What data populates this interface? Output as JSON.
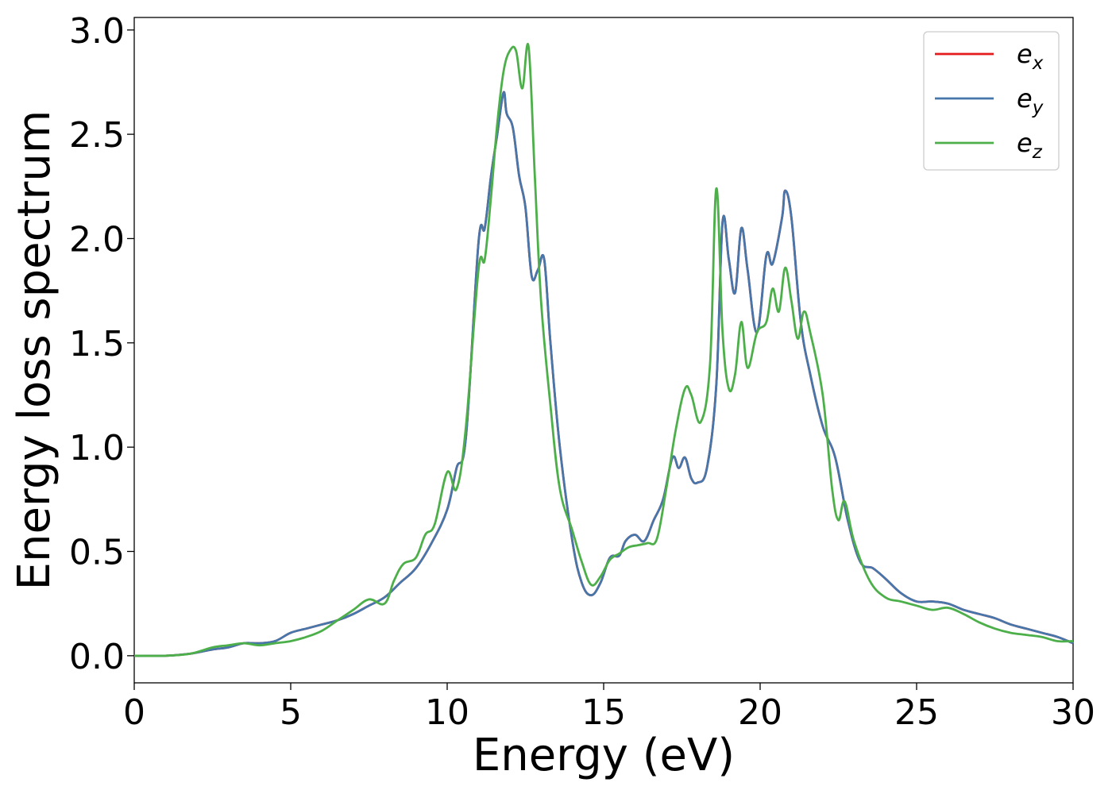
{
  "chart_data": {
    "type": "line",
    "title": "",
    "xlabel": "Energy (eV)",
    "ylabel": "Energy loss spectrum",
    "xlim": [
      0,
      30
    ],
    "ylim": [
      -0.13,
      3.06
    ],
    "xticks": [
      0,
      5,
      10,
      15,
      20,
      25,
      30
    ],
    "xtick_labels": [
      "0",
      "5",
      "10",
      "15",
      "20",
      "25",
      "30"
    ],
    "yticks": [
      0.0,
      0.5,
      1.0,
      1.5,
      2.0,
      2.5,
      3.0
    ],
    "ytick_labels": [
      "0.0",
      "0.5",
      "1.0",
      "1.5",
      "2.0",
      "2.5",
      "3.0"
    ],
    "grid": false,
    "legend_position": "top-right",
    "series": [
      {
        "name": "e_x",
        "label_main": "e",
        "label_sub": "x",
        "color": "#e41a1c",
        "x": [
          0,
          1,
          1.8,
          2.5,
          3,
          3.5,
          4,
          4.5,
          5,
          5.5,
          6,
          6.5,
          7,
          7.5,
          8,
          8.5,
          9,
          9.5,
          10,
          10.3,
          10.6,
          11,
          11.2,
          11.4,
          11.6,
          11.8,
          11.9,
          12.1,
          12.3,
          12.5,
          12.7,
          12.9,
          13.1,
          13.3,
          13.6,
          14,
          14.3,
          14.6,
          14.9,
          15.2,
          15.5,
          15.7,
          16,
          16.3,
          16.6,
          16.9,
          17.2,
          17.4,
          17.6,
          17.8,
          18,
          18.3,
          18.6,
          18.8,
          19,
          19.2,
          19.4,
          19.6,
          19.9,
          20.2,
          20.4,
          20.7,
          20.8,
          21,
          21.3,
          21.6,
          22,
          22.4,
          22.8,
          23.2,
          23.6,
          24,
          24.5,
          25,
          25.5,
          26,
          26.5,
          27,
          27.5,
          28,
          28.5,
          29,
          29.5,
          30
        ],
        "y": [
          0.0,
          0.0,
          0.01,
          0.03,
          0.04,
          0.06,
          0.06,
          0.07,
          0.11,
          0.13,
          0.15,
          0.17,
          0.2,
          0.24,
          0.28,
          0.35,
          0.42,
          0.54,
          0.7,
          0.9,
          1.05,
          1.98,
          2.05,
          2.3,
          2.5,
          2.7,
          2.6,
          2.53,
          2.3,
          2.15,
          1.82,
          1.85,
          1.9,
          1.5,
          1.0,
          0.55,
          0.35,
          0.29,
          0.35,
          0.47,
          0.48,
          0.55,
          0.58,
          0.55,
          0.65,
          0.75,
          0.95,
          0.9,
          0.95,
          0.85,
          0.83,
          0.9,
          1.3,
          2.08,
          1.9,
          1.74,
          2.05,
          1.85,
          1.55,
          1.92,
          1.88,
          2.1,
          2.23,
          2.1,
          1.6,
          1.35,
          1.1,
          0.95,
          0.65,
          0.45,
          0.42,
          0.37,
          0.3,
          0.26,
          0.26,
          0.25,
          0.22,
          0.2,
          0.18,
          0.15,
          0.13,
          0.11,
          0.09,
          0.06
        ]
      },
      {
        "name": "e_y",
        "label_main": "e",
        "label_sub": "y",
        "color": "#4777aa",
        "x": [
          0,
          1,
          1.8,
          2.5,
          3,
          3.5,
          4,
          4.5,
          5,
          5.5,
          6,
          6.5,
          7,
          7.5,
          8,
          8.5,
          9,
          9.5,
          10,
          10.3,
          10.6,
          11,
          11.2,
          11.4,
          11.6,
          11.8,
          11.9,
          12.1,
          12.3,
          12.5,
          12.7,
          12.9,
          13.1,
          13.3,
          13.6,
          14,
          14.3,
          14.6,
          14.9,
          15.2,
          15.5,
          15.7,
          16,
          16.3,
          16.6,
          16.9,
          17.2,
          17.4,
          17.6,
          17.8,
          18,
          18.3,
          18.6,
          18.8,
          19,
          19.2,
          19.4,
          19.6,
          19.9,
          20.2,
          20.4,
          20.7,
          20.8,
          21,
          21.3,
          21.6,
          22,
          22.4,
          22.8,
          23.2,
          23.6,
          24,
          24.5,
          25,
          25.5,
          26,
          26.5,
          27,
          27.5,
          28,
          28.5,
          29,
          29.5,
          30
        ],
        "y": [
          0.0,
          0.0,
          0.01,
          0.03,
          0.04,
          0.06,
          0.06,
          0.07,
          0.11,
          0.13,
          0.15,
          0.17,
          0.2,
          0.24,
          0.28,
          0.35,
          0.42,
          0.54,
          0.7,
          0.9,
          1.05,
          1.98,
          2.05,
          2.3,
          2.5,
          2.7,
          2.6,
          2.53,
          2.3,
          2.15,
          1.82,
          1.85,
          1.9,
          1.5,
          1.0,
          0.55,
          0.35,
          0.29,
          0.35,
          0.47,
          0.48,
          0.55,
          0.58,
          0.55,
          0.65,
          0.75,
          0.95,
          0.9,
          0.95,
          0.85,
          0.83,
          0.9,
          1.3,
          2.08,
          1.9,
          1.74,
          2.05,
          1.85,
          1.55,
          1.92,
          1.88,
          2.1,
          2.23,
          2.1,
          1.6,
          1.35,
          1.1,
          0.95,
          0.65,
          0.45,
          0.42,
          0.37,
          0.3,
          0.26,
          0.26,
          0.25,
          0.22,
          0.2,
          0.18,
          0.15,
          0.13,
          0.11,
          0.09,
          0.06
        ]
      },
      {
        "name": "e_z",
        "label_main": "e",
        "label_sub": "z",
        "color": "#4daf4a",
        "x": [
          0,
          1,
          1.8,
          2.5,
          3,
          3.5,
          4,
          4.5,
          5,
          5.5,
          6,
          6.5,
          7,
          7.5,
          8,
          8.3,
          8.6,
          9,
          9.3,
          9.6,
          10,
          10.3,
          10.6,
          11,
          11.2,
          11.4,
          11.6,
          11.8,
          12,
          12.2,
          12.4,
          12.6,
          12.8,
          13,
          13.3,
          13.6,
          14,
          14.3,
          14.6,
          14.9,
          15.2,
          15.5,
          15.8,
          16.1,
          16.4,
          16.7,
          17,
          17.3,
          17.6,
          17.8,
          18.1,
          18.4,
          18.6,
          18.8,
          19,
          19.2,
          19.4,
          19.6,
          19.9,
          20.2,
          20.4,
          20.6,
          20.8,
          21,
          21.2,
          21.4,
          21.6,
          22,
          22.3,
          22.5,
          22.7,
          23,
          23.5,
          24,
          24.5,
          25,
          25.5,
          26,
          26.5,
          27,
          27.5,
          28,
          28.5,
          29,
          29.5,
          30
        ],
        "y": [
          0.0,
          0.0,
          0.01,
          0.04,
          0.05,
          0.06,
          0.05,
          0.06,
          0.07,
          0.09,
          0.12,
          0.17,
          0.22,
          0.27,
          0.25,
          0.36,
          0.44,
          0.47,
          0.58,
          0.63,
          0.88,
          0.8,
          1.1,
          1.85,
          1.9,
          2.2,
          2.55,
          2.8,
          2.9,
          2.9,
          2.72,
          2.92,
          2.3,
          1.7,
          1.2,
          0.8,
          0.6,
          0.45,
          0.34,
          0.38,
          0.46,
          0.49,
          0.52,
          0.53,
          0.54,
          0.56,
          0.8,
          1.08,
          1.28,
          1.25,
          1.12,
          1.4,
          2.24,
          1.55,
          1.28,
          1.35,
          1.6,
          1.38,
          1.55,
          1.6,
          1.76,
          1.65,
          1.86,
          1.7,
          1.52,
          1.65,
          1.55,
          1.25,
          0.8,
          0.65,
          0.74,
          0.55,
          0.36,
          0.28,
          0.26,
          0.24,
          0.22,
          0.23,
          0.2,
          0.16,
          0.13,
          0.11,
          0.1,
          0.09,
          0.07,
          0.07
        ]
      }
    ]
  }
}
